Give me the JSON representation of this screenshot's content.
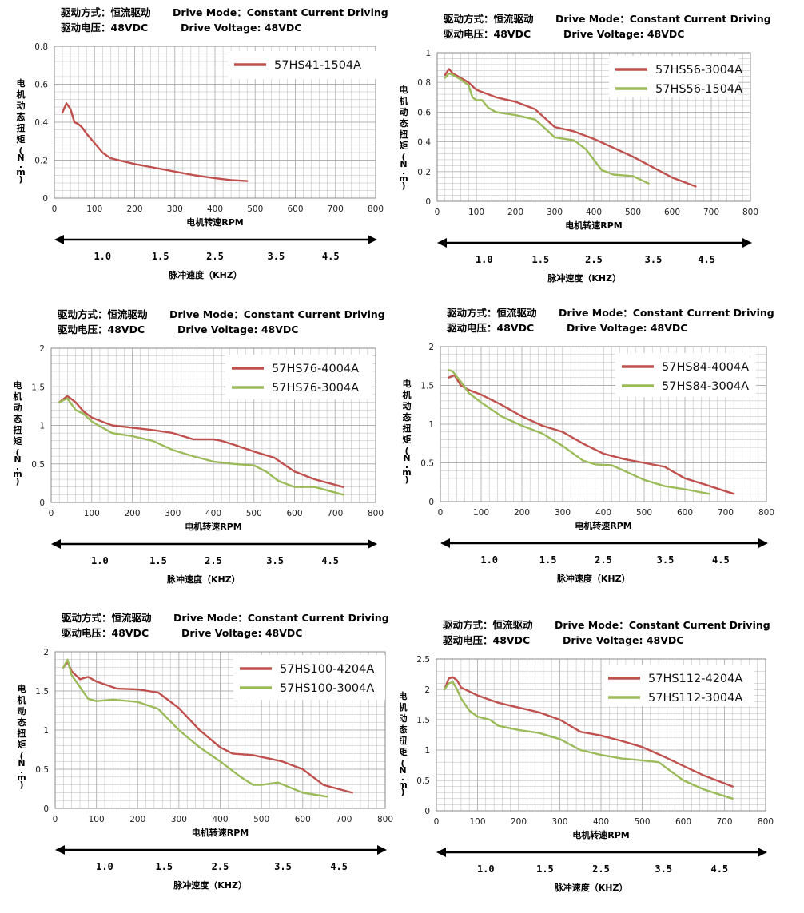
{
  "header": {
    "drive_mode_cn": "驱动方式：恒流驱动",
    "drive_mode_en": "Drive Mode：Constant Current Driving",
    "voltage_cn": "驱动电压：48VDC",
    "voltage_en": "Drive Voltage: 48VDC"
  },
  "common": {
    "ylabel": "电机动态扭矩(N.m)",
    "xlabel": "电机转速RPM",
    "pulse_label": "脉冲速度（KHZ）",
    "pulse_ticks": [
      "1.0",
      "1.5",
      "2.5",
      "3.5",
      "4.5"
    ],
    "xlim": [
      0,
      800
    ],
    "xticks": [
      0,
      100,
      200,
      300,
      400,
      500,
      600,
      700,
      800
    ]
  },
  "colors": {
    "red": "#C0504D",
    "green": "#9BBB59",
    "grid": "#b0b0b0"
  },
  "chart_data": [
    {
      "type": "line",
      "ylim": [
        0,
        0.8
      ],
      "yticks": [
        "0",
        "0.2",
        "0.4",
        "0.6",
        "0.8"
      ],
      "series": [
        {
          "name": "57HS41-1504A",
          "color": "#C0504D",
          "x": [
            20,
            30,
            40,
            50,
            60,
            70,
            80,
            100,
            120,
            140,
            200,
            250,
            300,
            350,
            400,
            440,
            480
          ],
          "y": [
            0.45,
            0.5,
            0.47,
            0.4,
            0.39,
            0.37,
            0.34,
            0.29,
            0.24,
            0.21,
            0.18,
            0.16,
            0.14,
            0.12,
            0.105,
            0.095,
            0.09
          ]
        }
      ]
    },
    {
      "type": "line",
      "ylim": [
        0,
        1
      ],
      "yticks": [
        "0",
        "0.2",
        "0.4",
        "0.6",
        "0.8",
        "1"
      ],
      "series": [
        {
          "name": "57HS56-3004A",
          "color": "#C0504D",
          "x": [
            20,
            30,
            40,
            60,
            80,
            100,
            150,
            200,
            250,
            300,
            350,
            400,
            450,
            500,
            550,
            600,
            660
          ],
          "y": [
            0.85,
            0.89,
            0.86,
            0.83,
            0.8,
            0.75,
            0.7,
            0.67,
            0.62,
            0.5,
            0.47,
            0.42,
            0.36,
            0.3,
            0.23,
            0.16,
            0.1
          ]
        },
        {
          "name": "57HS56-1504A",
          "color": "#9BBB59",
          "x": [
            20,
            30,
            40,
            60,
            80,
            90,
            100,
            115,
            130,
            150,
            200,
            250,
            280,
            300,
            350,
            380,
            400,
            420,
            450,
            500,
            540
          ],
          "y": [
            0.83,
            0.86,
            0.85,
            0.82,
            0.78,
            0.7,
            0.68,
            0.68,
            0.63,
            0.6,
            0.58,
            0.55,
            0.48,
            0.43,
            0.41,
            0.35,
            0.28,
            0.21,
            0.18,
            0.17,
            0.12
          ]
        }
      ]
    },
    {
      "type": "line",
      "ylim": [
        0,
        2
      ],
      "yticks": [
        "0",
        "0.5",
        "1",
        "1.5",
        "2"
      ],
      "series": [
        {
          "name": "57HS76-4004A",
          "color": "#C0504D",
          "x": [
            20,
            40,
            60,
            80,
            100,
            150,
            200,
            250,
            300,
            350,
            400,
            420,
            450,
            500,
            550,
            600,
            650,
            720
          ],
          "y": [
            1.3,
            1.38,
            1.3,
            1.18,
            1.1,
            1.0,
            0.97,
            0.94,
            0.9,
            0.82,
            0.82,
            0.8,
            0.75,
            0.66,
            0.58,
            0.4,
            0.3,
            0.2
          ]
        },
        {
          "name": "57HS76-3004A",
          "color": "#9BBB59",
          "x": [
            20,
            40,
            60,
            80,
            100,
            150,
            200,
            250,
            300,
            350,
            400,
            450,
            500,
            530,
            560,
            600,
            650,
            720
          ],
          "y": [
            1.3,
            1.35,
            1.2,
            1.15,
            1.05,
            0.9,
            0.86,
            0.8,
            0.68,
            0.6,
            0.53,
            0.5,
            0.48,
            0.4,
            0.28,
            0.2,
            0.2,
            0.1
          ]
        }
      ]
    },
    {
      "type": "line",
      "ylim": [
        0,
        2
      ],
      "yticks": [
        "0",
        "0.5",
        "1",
        "1.5",
        "2"
      ],
      "series": [
        {
          "name": "57HS84-4004A",
          "color": "#C0504D",
          "x": [
            20,
            35,
            50,
            70,
            100,
            150,
            200,
            250,
            300,
            350,
            400,
            450,
            500,
            550,
            600,
            650,
            720
          ],
          "y": [
            1.6,
            1.63,
            1.5,
            1.44,
            1.38,
            1.25,
            1.1,
            0.98,
            0.9,
            0.75,
            0.62,
            0.55,
            0.5,
            0.45,
            0.3,
            0.22,
            0.1
          ]
        },
        {
          "name": "57HS84-3004A",
          "color": "#9BBB59",
          "x": [
            20,
            30,
            50,
            70,
            100,
            150,
            200,
            250,
            300,
            350,
            380,
            420,
            450,
            500,
            550,
            600,
            660
          ],
          "y": [
            1.7,
            1.68,
            1.55,
            1.4,
            1.28,
            1.1,
            0.98,
            0.88,
            0.72,
            0.53,
            0.48,
            0.47,
            0.4,
            0.28,
            0.2,
            0.16,
            0.1
          ]
        }
      ]
    },
    {
      "type": "line",
      "ylim": [
        0,
        2
      ],
      "yticks": [
        "0",
        "0.5",
        "1",
        "1.5",
        "2"
      ],
      "series": [
        {
          "name": "57HS100-4204A",
          "color": "#C0504D",
          "x": [
            20,
            30,
            40,
            60,
            80,
            100,
            150,
            200,
            250,
            300,
            350,
            400,
            430,
            480,
            550,
            600,
            650,
            720
          ],
          "y": [
            1.8,
            1.87,
            1.75,
            1.65,
            1.68,
            1.62,
            1.53,
            1.52,
            1.48,
            1.28,
            1.0,
            0.78,
            0.7,
            0.68,
            0.6,
            0.5,
            0.3,
            0.2
          ]
        },
        {
          "name": "57HS100-3004A",
          "color": "#9BBB59",
          "x": [
            20,
            30,
            40,
            60,
            80,
            100,
            120,
            140,
            200,
            250,
            300,
            350,
            400,
            450,
            480,
            500,
            540,
            600,
            660
          ],
          "y": [
            1.8,
            1.9,
            1.7,
            1.55,
            1.4,
            1.37,
            1.38,
            1.39,
            1.36,
            1.27,
            1.0,
            0.78,
            0.6,
            0.4,
            0.3,
            0.3,
            0.33,
            0.2,
            0.15
          ]
        }
      ]
    },
    {
      "type": "line",
      "ylim": [
        0,
        2.5
      ],
      "yticks": [
        "0",
        "0.5",
        "1",
        "1.5",
        "2",
        "2.5"
      ],
      "series": [
        {
          "name": "57HS112-4204A",
          "color": "#C0504D",
          "x": [
            20,
            30,
            40,
            50,
            60,
            100,
            150,
            200,
            250,
            300,
            350,
            400,
            450,
            500,
            550,
            600,
            650,
            720
          ],
          "y": [
            2.0,
            2.18,
            2.2,
            2.15,
            2.03,
            1.9,
            1.78,
            1.7,
            1.62,
            1.5,
            1.3,
            1.24,
            1.15,
            1.05,
            0.9,
            0.74,
            0.58,
            0.4
          ]
        },
        {
          "name": "57HS112-3004A",
          "color": "#9BBB59",
          "x": [
            20,
            30,
            40,
            50,
            60,
            70,
            80,
            100,
            130,
            150,
            200,
            250,
            300,
            350,
            400,
            450,
            500,
            540,
            560,
            600,
            650,
            720
          ],
          "y": [
            2.0,
            2.1,
            2.12,
            2.0,
            1.85,
            1.75,
            1.65,
            1.55,
            1.5,
            1.4,
            1.33,
            1.28,
            1.18,
            1.0,
            0.92,
            0.86,
            0.83,
            0.8,
            0.7,
            0.5,
            0.35,
            0.2
          ]
        }
      ]
    }
  ]
}
